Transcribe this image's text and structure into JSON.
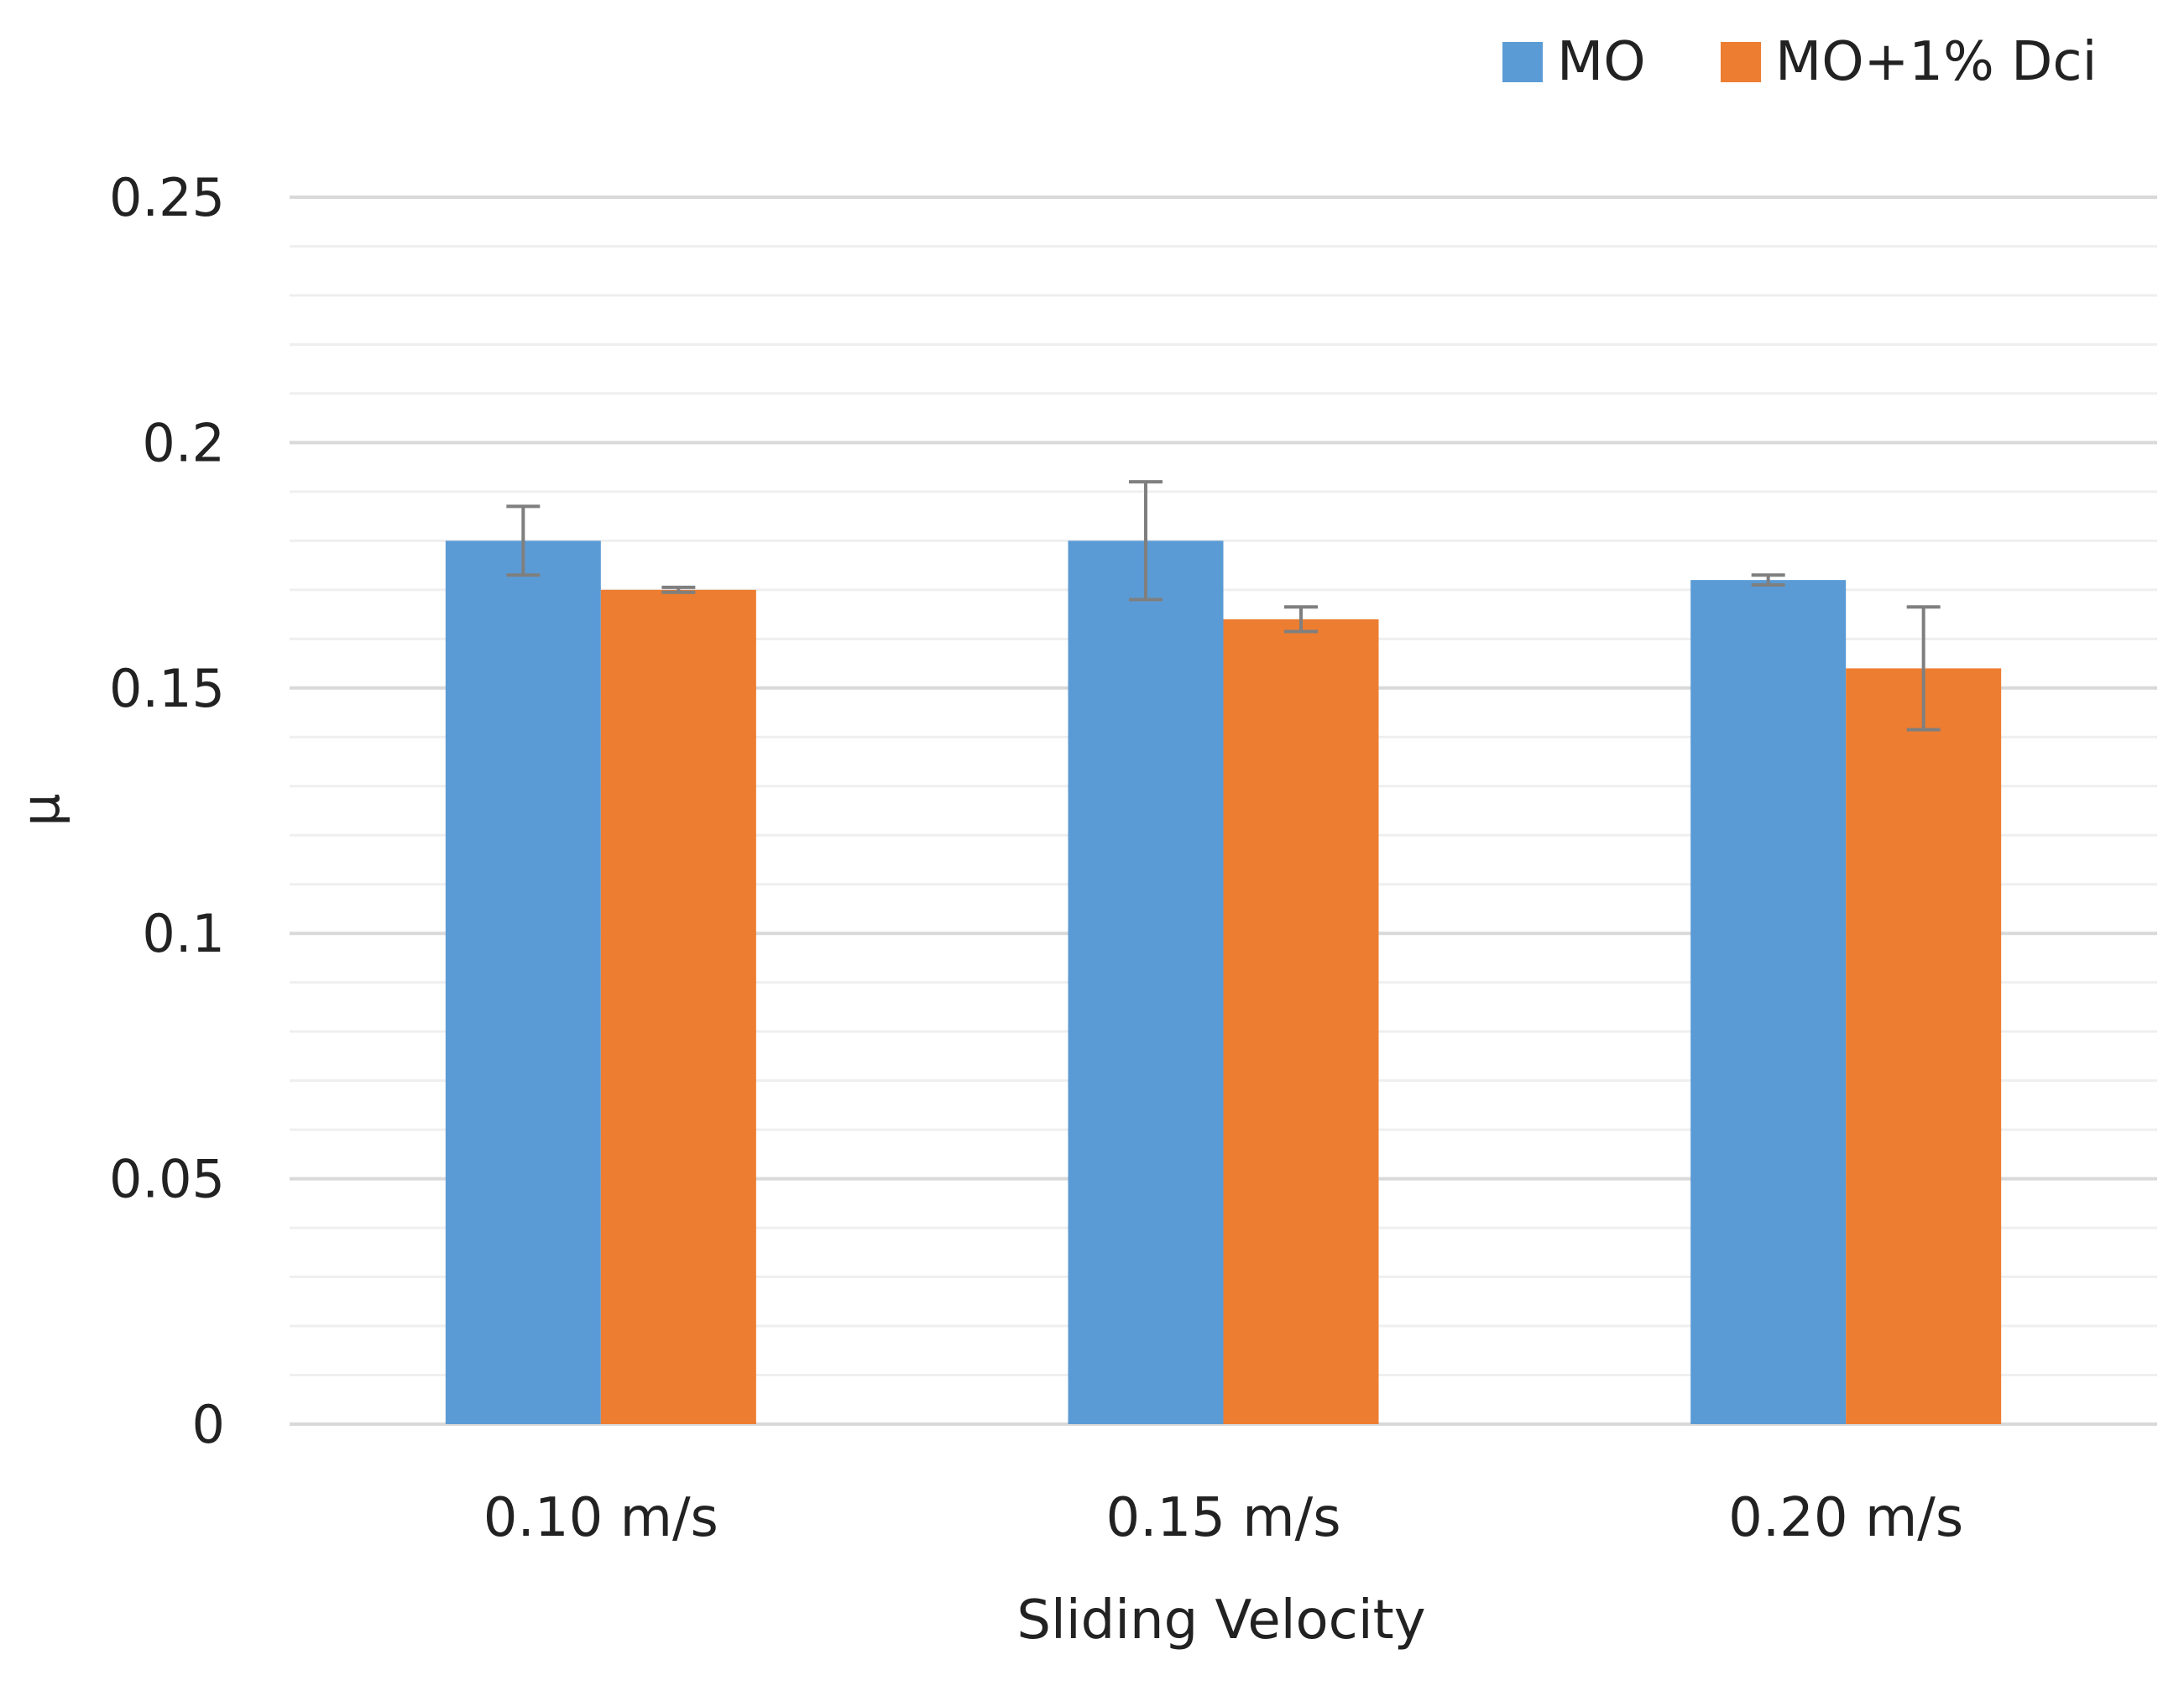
{
  "chart_data": {
    "type": "bar",
    "title": "",
    "xlabel": "Sliding Velocity",
    "ylabel": "μ",
    "categories": [
      "0.10 m/s",
      "0.15 m/s",
      "0.20 m/s"
    ],
    "series": [
      {
        "name": "MO",
        "color": "#5b9bd5",
        "values": [
          0.18,
          0.18,
          0.172
        ],
        "errors": [
          0.007,
          0.012,
          0.001
        ]
      },
      {
        "name": "MO+1% Dci",
        "color": "#ed7d31",
        "values": [
          0.17,
          0.164,
          0.154
        ],
        "errors": [
          0.0005,
          0.0025,
          0.0125
        ]
      }
    ],
    "ylim": [
      0,
      0.25
    ],
    "yticks": [
      0,
      0.05,
      0.1,
      0.15,
      0.2,
      0.25
    ],
    "ytick_labels": [
      "0",
      "0.05",
      "0.1",
      "0.15",
      "0.2",
      "0.25"
    ],
    "minor_gridline_step": 0.01,
    "grid": true,
    "legend_position": "top-right",
    "colors": {
      "major_grid": "#d9d9d9",
      "minor_grid": "#efefef",
      "error_bar": "#7f7f7f"
    }
  }
}
